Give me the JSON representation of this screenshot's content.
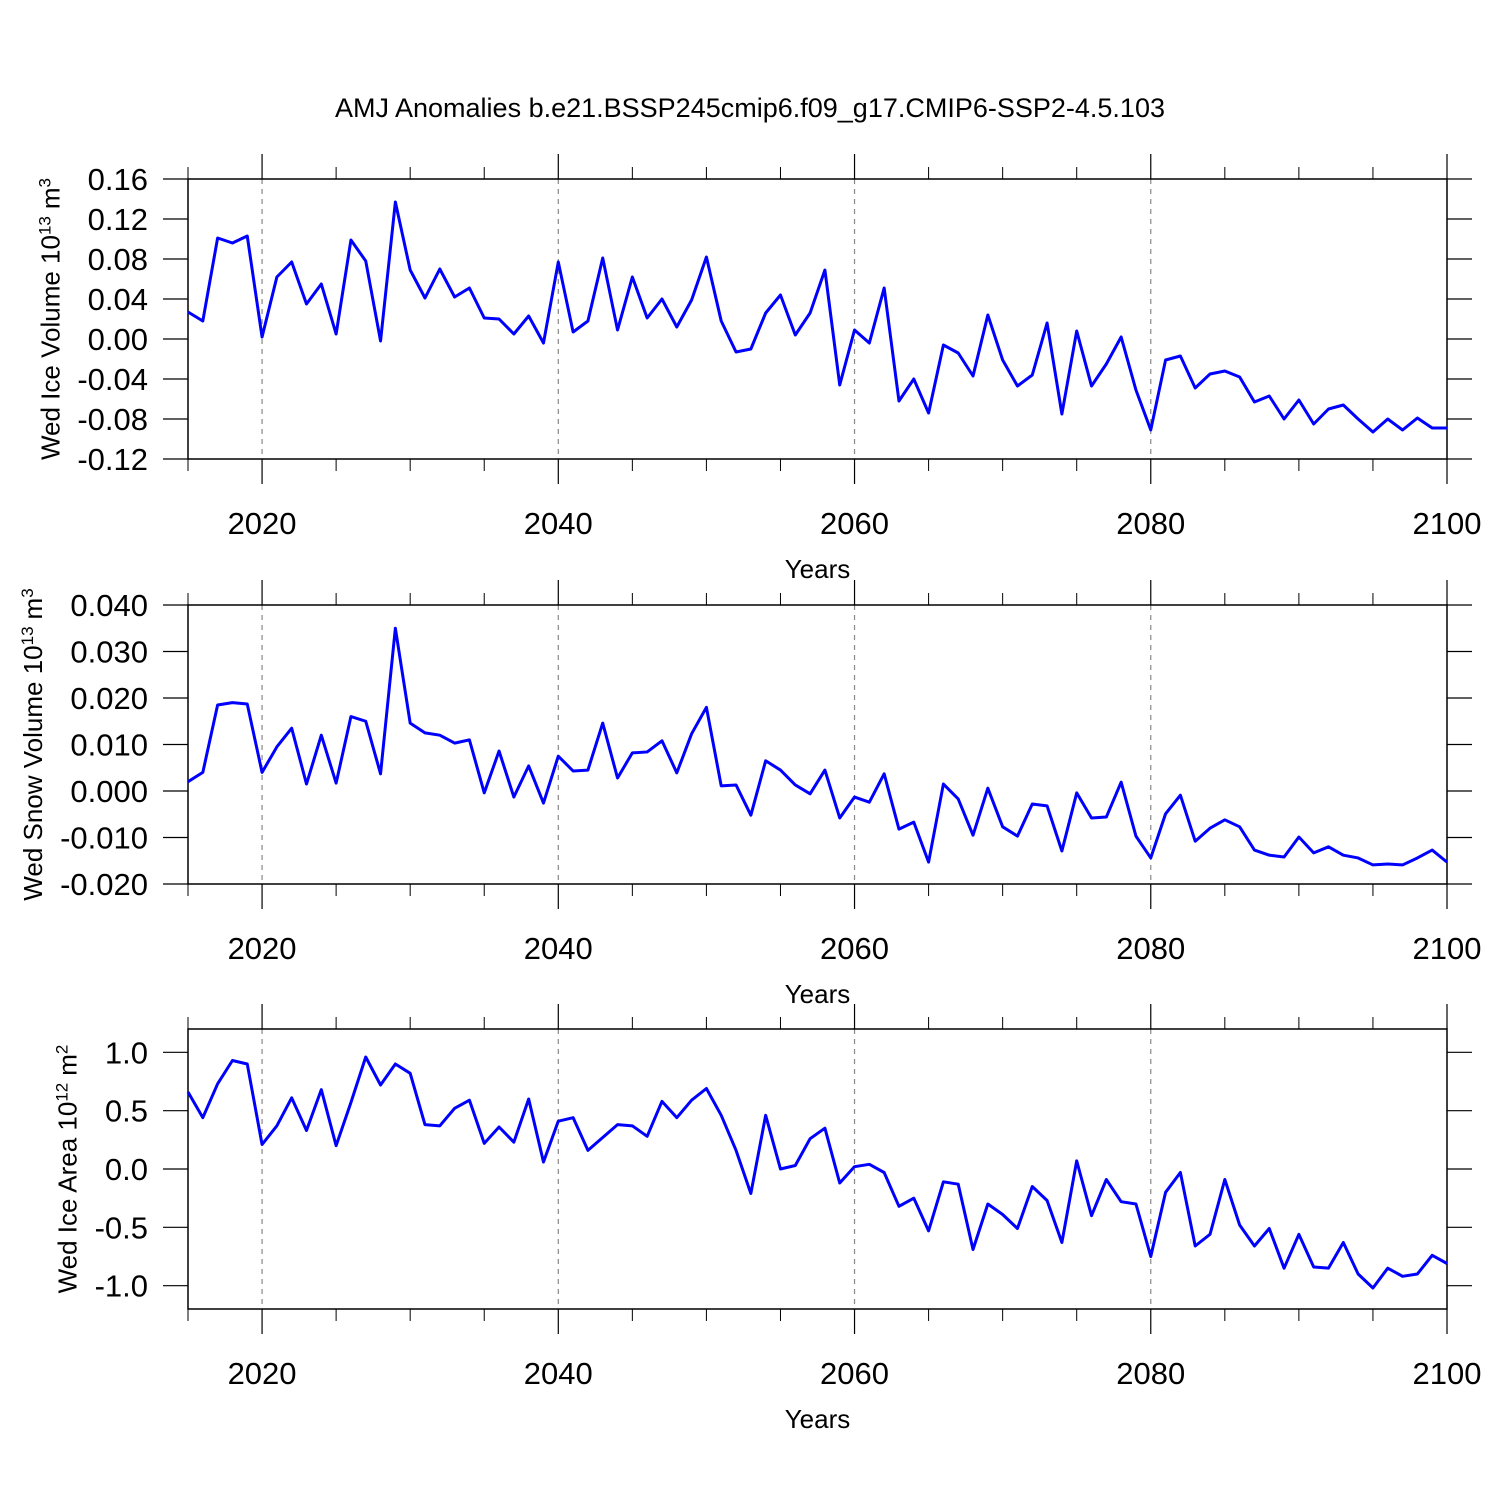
{
  "chart_data": [
    {
      "type": "line",
      "title": "AMJ Anomalies b.e21.BSSP245cmip6.f09_g17.CMIP6-SSP2-4.5.103",
      "ylabel": [
        "Wed Ice Volume 10",
        "13",
        "m",
        "3"
      ],
      "xlabel": "Years",
      "xlim": [
        2015,
        2100
      ],
      "xticks": [
        2020,
        2040,
        2060,
        2080,
        2100
      ],
      "xminorticks": [
        2015,
        2025,
        2030,
        2035,
        2045,
        2050,
        2055,
        2065,
        2070,
        2075,
        2085,
        2090,
        2095
      ],
      "ylim": [
        -0.12,
        0.16
      ],
      "yticks": [
        0.16,
        0.12,
        0.08,
        0.04,
        {
          "value": 0,
          "label": "0.00"
        },
        -0.04,
        -0.08,
        -0.12
      ],
      "grid": true,
      "x": [
        2015,
        2016,
        2017,
        2018,
        2019,
        2020,
        2021,
        2022,
        2023,
        2024,
        2025,
        2026,
        2027,
        2028,
        2029,
        2030,
        2031,
        2032,
        2033,
        2034,
        2035,
        2036,
        2037,
        2038,
        2039,
        2040,
        2041,
        2042,
        2043,
        2044,
        2045,
        2046,
        2047,
        2048,
        2049,
        2050,
        2051,
        2052,
        2053,
        2054,
        2055,
        2056,
        2057,
        2058,
        2059,
        2060,
        2061,
        2062,
        2063,
        2064,
        2065,
        2066,
        2067,
        2068,
        2069,
        2070,
        2071,
        2072,
        2073,
        2074,
        2075,
        2076,
        2077,
        2078,
        2079,
        2080,
        2081,
        2082,
        2083,
        2084,
        2085,
        2086,
        2087,
        2088,
        2089,
        2090,
        2091,
        2092,
        2093,
        2094,
        2095,
        2096,
        2097,
        2098,
        2099,
        2100
      ],
      "series": [
        {
          "color": "#0000ff",
          "values": [
            0.027,
            0.018,
            0.101,
            0.096,
            0.103,
            0.002,
            0.062,
            0.077,
            0.035,
            0.055,
            0.005,
            0.099,
            0.078,
            -0.002,
            0.137,
            0.069,
            0.041,
            0.07,
            0.042,
            0.051,
            0.021,
            0.02,
            0.005,
            0.023,
            -0.004,
            0.077,
            0.007,
            0.018,
            0.081,
            0.009,
            0.062,
            0.021,
            0.04,
            0.012,
            0.039,
            0.082,
            0.018,
            -0.013,
            -0.01,
            0.026,
            0.044,
            0.004,
            0.026,
            0.069,
            -0.046,
            0.009,
            -0.004,
            0.051,
            -0.062,
            -0.04,
            -0.074,
            -0.006,
            -0.014,
            -0.037,
            0.024,
            -0.021,
            -0.047,
            -0.036,
            0.016,
            -0.075,
            0.008,
            -0.047,
            -0.025,
            0.002,
            -0.051,
            -0.091,
            -0.021,
            -0.017,
            -0.049,
            -0.035,
            -0.032,
            -0.038,
            -0.063,
            -0.057,
            -0.08,
            -0.061,
            -0.085,
            -0.07,
            -0.066,
            -0.08,
            -0.093,
            -0.08,
            -0.091,
            -0.079,
            -0.089,
            -0.089
          ]
        }
      ]
    },
    {
      "type": "line",
      "ylabel": [
        "Wed Snow Volume 10",
        "13",
        "m",
        "3"
      ],
      "xlabel": "Years",
      "xlim": [
        2015,
        2100
      ],
      "xticks": [
        2020,
        2040,
        2060,
        2080,
        2100
      ],
      "xminorticks": [
        2015,
        2025,
        2030,
        2035,
        2045,
        2050,
        2055,
        2065,
        2070,
        2075,
        2085,
        2090,
        2095
      ],
      "ylim": [
        -0.02,
        0.04
      ],
      "yticks": [
        {
          "value": 0.04,
          "label": "0.040"
        },
        {
          "value": 0.03,
          "label": "0.030"
        },
        {
          "value": 0.02,
          "label": "0.020"
        },
        {
          "value": 0.01,
          "label": "0.010"
        },
        {
          "value": 0,
          "label": "0.000"
        },
        {
          "value": -0.01,
          "label": "-0.010"
        },
        {
          "value": -0.02,
          "label": "-0.020"
        }
      ],
      "grid": true,
      "x": [
        2015,
        2016,
        2017,
        2018,
        2019,
        2020,
        2021,
        2022,
        2023,
        2024,
        2025,
        2026,
        2027,
        2028,
        2029,
        2030,
        2031,
        2032,
        2033,
        2034,
        2035,
        2036,
        2037,
        2038,
        2039,
        2040,
        2041,
        2042,
        2043,
        2044,
        2045,
        2046,
        2047,
        2048,
        2049,
        2050,
        2051,
        2052,
        2053,
        2054,
        2055,
        2056,
        2057,
        2058,
        2059,
        2060,
        2061,
        2062,
        2063,
        2064,
        2065,
        2066,
        2067,
        2068,
        2069,
        2070,
        2071,
        2072,
        2073,
        2074,
        2075,
        2076,
        2077,
        2078,
        2079,
        2080,
        2081,
        2082,
        2083,
        2084,
        2085,
        2086,
        2087,
        2088,
        2089,
        2090,
        2091,
        2092,
        2093,
        2094,
        2095,
        2096,
        2097,
        2098,
        2099,
        2100
      ],
      "series": [
        {
          "color": "#0000ff",
          "values": [
            0.002,
            0.004,
            0.0185,
            0.019,
            0.0187,
            0.004,
            0.0095,
            0.0135,
            0.0015,
            0.012,
            0.0017,
            0.016,
            0.015,
            0.0037,
            0.035,
            0.0146,
            0.0125,
            0.012,
            0.0103,
            0.011,
            -0.0004,
            0.0086,
            -0.0013,
            0.0054,
            -0.0026,
            0.0075,
            0.0043,
            0.0045,
            0.0146,
            0.0028,
            0.0082,
            0.0084,
            0.0108,
            0.0039,
            0.0123,
            0.018,
            0.0011,
            0.0013,
            -0.0052,
            0.0065,
            0.0045,
            0.0013,
            -0.0006,
            0.0045,
            -0.0058,
            -0.0013,
            -0.0024,
            0.0037,
            -0.0082,
            -0.0067,
            -0.0153,
            0.0015,
            -0.0017,
            -0.0095,
            0.0006,
            -0.0077,
            -0.0097,
            -0.0028,
            -0.0032,
            -0.0129,
            -0.0004,
            -0.0058,
            -0.0056,
            0.0019,
            -0.0097,
            -0.0144,
            -0.0049,
            -0.0009,
            -0.0108,
            -0.008,
            -0.0062,
            -0.0077,
            -0.0127,
            -0.0138,
            -0.0142,
            -0.0099,
            -0.0133,
            -0.012,
            -0.0138,
            -0.0144,
            -0.0159,
            -0.0157,
            -0.0159,
            -0.0144,
            -0.0127,
            -0.0153
          ]
        }
      ]
    },
    {
      "type": "line",
      "ylabel": [
        "Wed Ice Area 10",
        "12",
        "m",
        "2"
      ],
      "xlabel": "Years",
      "xlim": [
        2015,
        2100
      ],
      "xticks": [
        2020,
        2040,
        2060,
        2080,
        2100
      ],
      "xminorticks": [
        2015,
        2025,
        2030,
        2035,
        2045,
        2050,
        2055,
        2065,
        2070,
        2075,
        2085,
        2090,
        2095
      ],
      "ylim": [
        -1.2,
        1.2
      ],
      "yticks": [
        {
          "value": 1,
          "label": "1.0"
        },
        0.5,
        {
          "value": 0,
          "label": "0.0"
        },
        -0.5,
        {
          "value": -1,
          "label": "-1.0"
        }
      ],
      "grid": true,
      "x": [
        2015,
        2016,
        2017,
        2018,
        2019,
        2020,
        2021,
        2022,
        2023,
        2024,
        2025,
        2026,
        2027,
        2028,
        2029,
        2030,
        2031,
        2032,
        2033,
        2034,
        2035,
        2036,
        2037,
        2038,
        2039,
        2040,
        2041,
        2042,
        2043,
        2044,
        2045,
        2046,
        2047,
        2048,
        2049,
        2050,
        2051,
        2052,
        2053,
        2054,
        2055,
        2056,
        2057,
        2058,
        2059,
        2060,
        2061,
        2062,
        2063,
        2064,
        2065,
        2066,
        2067,
        2068,
        2069,
        2070,
        2071,
        2072,
        2073,
        2074,
        2075,
        2076,
        2077,
        2078,
        2079,
        2080,
        2081,
        2082,
        2083,
        2084,
        2085,
        2086,
        2087,
        2088,
        2089,
        2090,
        2091,
        2092,
        2093,
        2094,
        2095,
        2096,
        2097,
        2098,
        2099,
        2100
      ],
      "series": [
        {
          "color": "#0000ff",
          "values": [
            0.66,
            0.44,
            0.73,
            0.93,
            0.9,
            0.21,
            0.37,
            0.61,
            0.33,
            0.68,
            0.2,
            0.57,
            0.96,
            0.72,
            0.9,
            0.82,
            0.38,
            0.37,
            0.52,
            0.59,
            0.22,
            0.36,
            0.23,
            0.6,
            0.06,
            0.41,
            0.44,
            0.16,
            0.27,
            0.38,
            0.37,
            0.28,
            0.58,
            0.44,
            0.59,
            0.69,
            0.46,
            0.16,
            -0.21,
            0.46,
            0.0,
            0.03,
            0.26,
            0.35,
            -0.12,
            0.02,
            0.04,
            -0.03,
            -0.32,
            -0.25,
            -0.53,
            -0.11,
            -0.13,
            -0.69,
            -0.3,
            -0.39,
            -0.51,
            -0.15,
            -0.27,
            -0.63,
            0.07,
            -0.4,
            -0.09,
            -0.28,
            -0.3,
            -0.75,
            -0.2,
            -0.03,
            -0.66,
            -0.56,
            -0.09,
            -0.48,
            -0.66,
            -0.51,
            -0.85,
            -0.56,
            -0.84,
            -0.85,
            -0.63,
            -0.9,
            -1.02,
            -0.85,
            -0.92,
            -0.9,
            -0.74,
            -0.81
          ]
        }
      ]
    }
  ]
}
